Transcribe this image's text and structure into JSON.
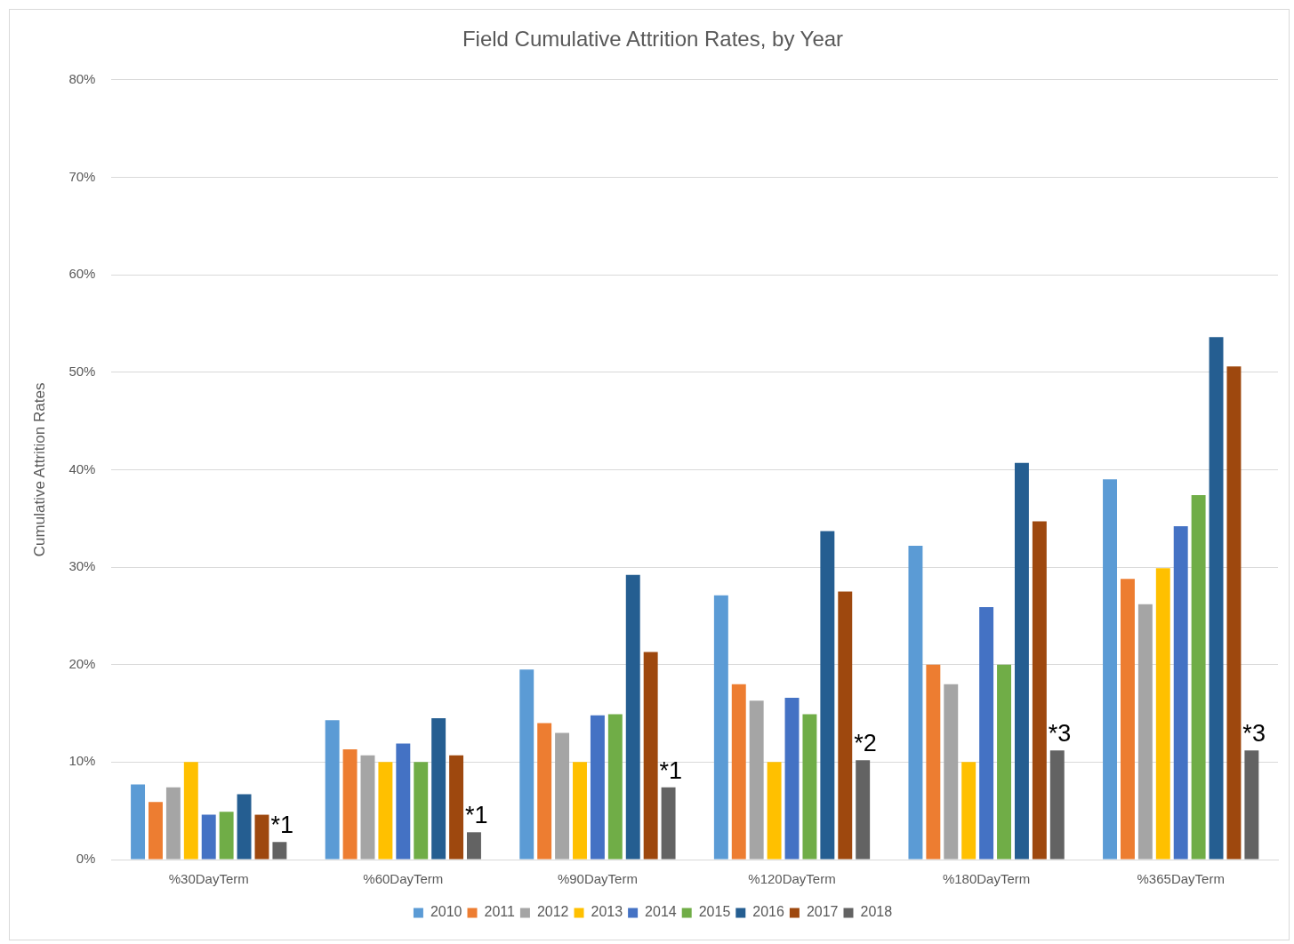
{
  "chart_data": {
    "type": "bar",
    "title": "Field Cumulative Attrition Rates, by Year",
    "ylabel": "Cumulative Attrition Rates",
    "categories": [
      "%30DayTerm",
      "%60DayTerm",
      "%90DayTerm",
      "%120DayTerm",
      "%180DayTerm",
      "%365DayTerm"
    ],
    "series": [
      {
        "name": "2010",
        "color": "#5b9bd5",
        "values": [
          7.7,
          14.3,
          19.5,
          27.1,
          32.2,
          39.0
        ]
      },
      {
        "name": "2011",
        "color": "#ed7d31",
        "values": [
          5.9,
          11.3,
          14.0,
          18.0,
          20.0,
          28.8
        ]
      },
      {
        "name": "2012",
        "color": "#a5a5a5",
        "values": [
          7.4,
          10.7,
          13.0,
          16.3,
          18.0,
          26.2
        ]
      },
      {
        "name": "2013",
        "color": "#ffc000",
        "values": [
          10,
          10,
          10,
          10,
          10,
          29.9
        ]
      },
      {
        "name": "2014",
        "color": "#4472c4",
        "values": [
          4.6,
          11.9,
          14.8,
          16.6,
          25.9,
          34.2
        ]
      },
      {
        "name": "2015",
        "color": "#70ad47",
        "values": [
          4.9,
          10,
          14.9,
          14.9,
          20.0,
          37.4
        ]
      },
      {
        "name": "2016",
        "color": "#255e91",
        "values": [
          6.7,
          14.5,
          29.2,
          33.7,
          40.7,
          53.6
        ]
      },
      {
        "name": "2017",
        "color": "#9e480e",
        "values": [
          4.6,
          10.7,
          21.3,
          27.5,
          34.7,
          50.6
        ]
      },
      {
        "name": "2018",
        "color": "#636363",
        "values": [
          1.8,
          2.8,
          7.4,
          10.2,
          11.2,
          11.2
        ]
      }
    ],
    "ylim": [
      0,
      80
    ],
    "yticks": [
      {
        "value": 0,
        "label": "0%"
      },
      {
        "value": 10,
        "label": "10%"
      },
      {
        "value": 20,
        "label": "20%"
      },
      {
        "value": 30,
        "label": "30%"
      },
      {
        "value": 40,
        "label": "40%"
      },
      {
        "value": 50,
        "label": "50%"
      },
      {
        "value": 60,
        "label": "60%"
      },
      {
        "value": 70,
        "label": "70%"
      },
      {
        "value": 80,
        "label": "80%"
      }
    ],
    "grid": "y",
    "legend": "bottom",
    "annotations": [
      "*1",
      "*1",
      "*1",
      "*2",
      "*3",
      "*3"
    ]
  }
}
